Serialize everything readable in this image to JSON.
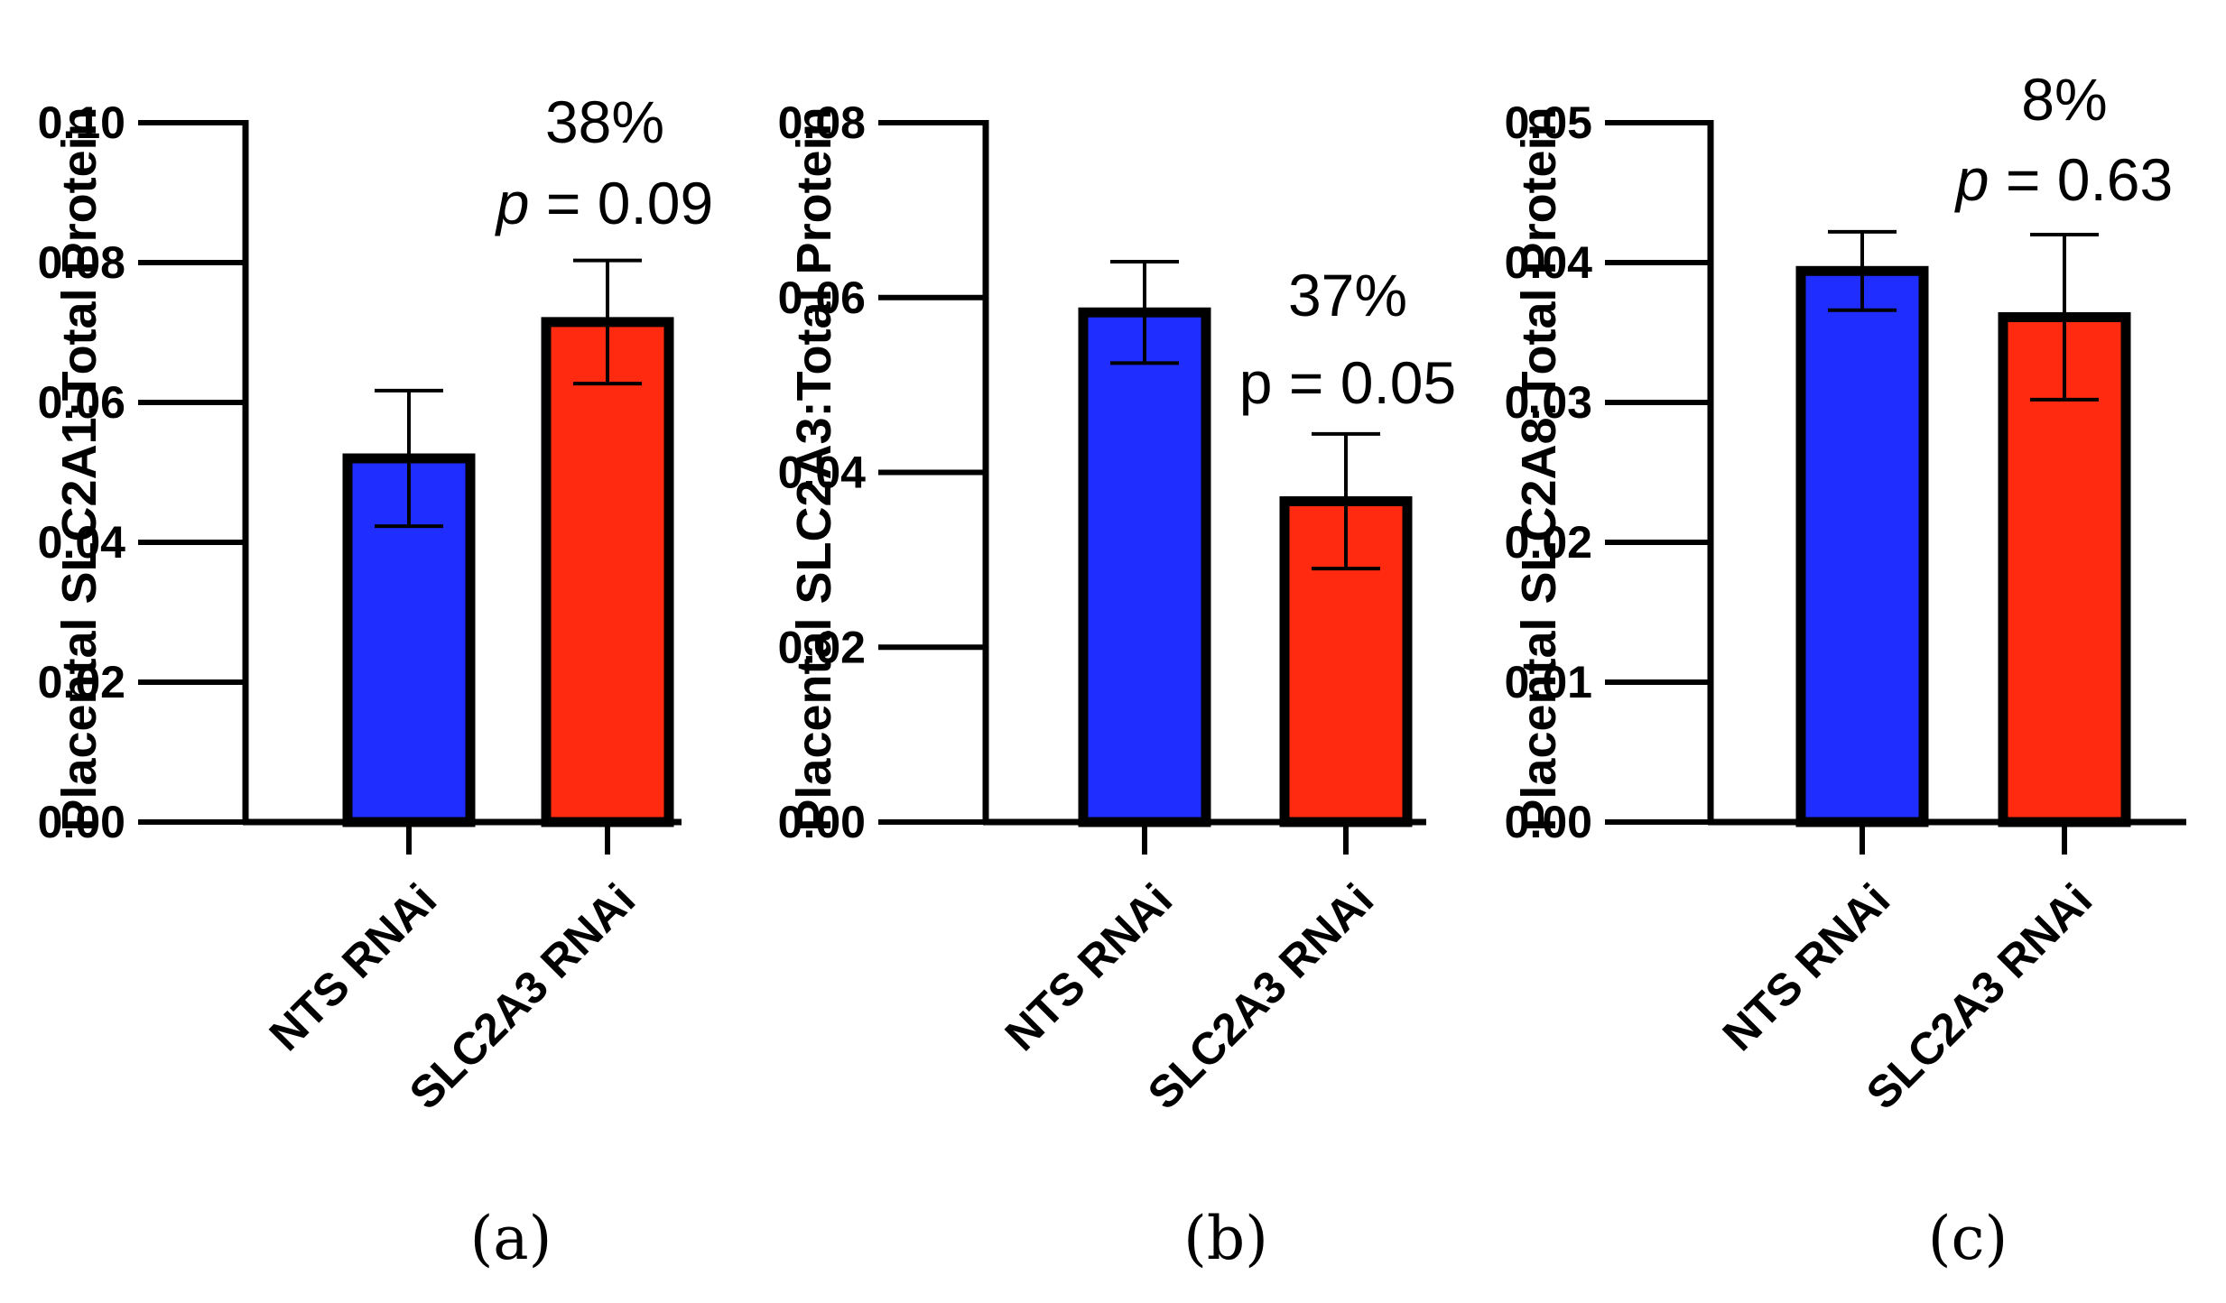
{
  "chart_data": [
    {
      "type": "bar",
      "panel_label": "(a)",
      "categories": [
        "NTS RNAi",
        "SLC2A3 RNAi"
      ],
      "values": [
        0.052,
        0.0715
      ],
      "errors": [
        0.0097,
        0.0088
      ],
      "colors": [
        "#1f2eff",
        "#ff2a10"
      ],
      "ylabel": "Placental SLC2A1:Total Protein",
      "ylim": [
        0,
        0.1
      ],
      "yticks": [
        "0.00",
        "0.02",
        "0.04",
        "0.06",
        "0.08",
        "0.10"
      ],
      "annotation": {
        "percent": "38%",
        "p_symbol": "p",
        "p_value": " = 0.09",
        "p_italic": true
      }
    },
    {
      "type": "bar",
      "panel_label": "(b)",
      "categories": [
        "NTS RNAi",
        "SLC2A3 RNAi"
      ],
      "values": [
        0.0583,
        0.0367
      ],
      "errors": [
        0.0058,
        0.0077
      ],
      "colors": [
        "#1f2eff",
        "#ff2a10"
      ],
      "ylabel": "Placental SLC2A3:Total Protein",
      "ylim": [
        0,
        0.08
      ],
      "yticks": [
        "0.00",
        "0.02",
        "0.04",
        "0.06",
        "0.08"
      ],
      "annotation": {
        "percent": "37%",
        "p_symbol": "p",
        "p_value": " = 0.05",
        "p_italic": false
      }
    },
    {
      "type": "bar",
      "panel_label": "(c)",
      "categories": [
        "NTS RNAi",
        "SLC2A3 RNAi"
      ],
      "values": [
        0.0394,
        0.0361
      ],
      "errors": [
        0.0028,
        0.0059
      ],
      "colors": [
        "#1f2eff",
        "#ff2a10"
      ],
      "ylabel": "Placental SLC2A8:Total Protein",
      "ylim": [
        0,
        0.05
      ],
      "yticks": [
        "0.00",
        "0.01",
        "0.02",
        "0.03",
        "0.04",
        "0.05"
      ],
      "annotation": {
        "percent": "8%",
        "p_symbol": "p",
        "p_value": " = 0.63",
        "p_italic": true
      }
    }
  ]
}
